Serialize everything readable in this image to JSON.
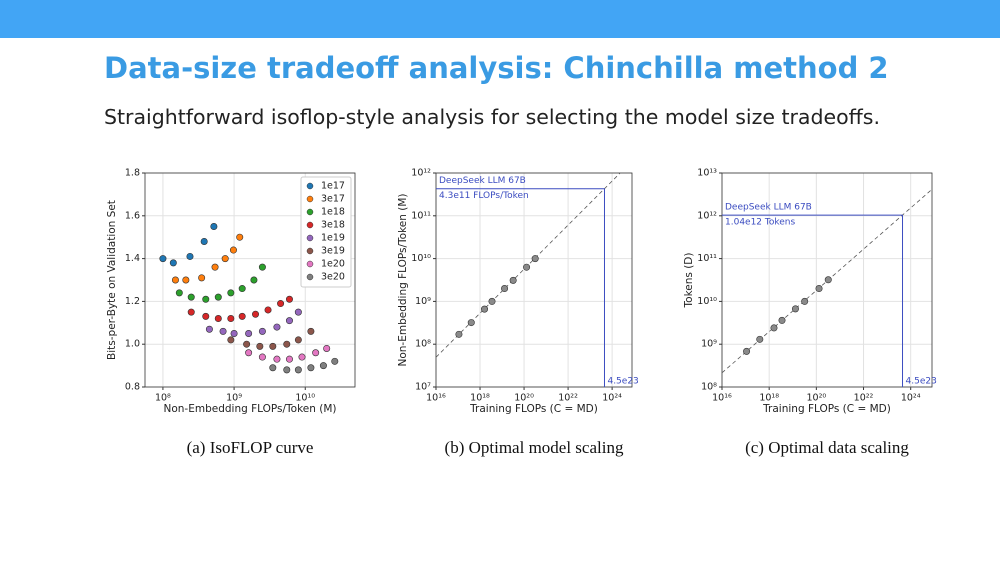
{
  "slide": {
    "title": "Data-size tradeoff analysis: Chinchilla method 2",
    "subtitle": "Straightforward isoflop-style analysis for selecting the model size tradeoffs."
  },
  "chart_data": [
    {
      "type": "scatter",
      "caption": "(a) IsoFLOP curve",
      "x_label": "Non-Embedding FLOPs/Token (M)",
      "y_label": "Bits-per-Byte on Validation Set",
      "xscale": "log",
      "xlim": [
        56000000,
        50000000000
      ],
      "ylim": [
        0.8,
        1.8
      ],
      "xticks": [
        {
          "value": 100000000,
          "label": "10⁸"
        },
        {
          "value": 1000000000,
          "label": "10⁹"
        },
        {
          "value": 10000000000,
          "label": "10¹⁰"
        }
      ],
      "yticks": [
        0.8,
        {
          "value": 1,
          "label": "1.0"
        },
        1.2,
        1.4,
        1.6,
        1.8
      ],
      "grid": true,
      "legend": "upper right",
      "series": [
        {
          "name": "1e17",
          "color": "#1f77b4",
          "x": [
            100000000,
            140000000,
            240000000,
            380000000,
            520000000
          ],
          "values": [
            1.4,
            1.38,
            1.41,
            1.48,
            1.55
          ]
        },
        {
          "name": "3e17",
          "color": "#ff7f0e",
          "x": [
            150000000,
            210000000,
            350000000,
            540000000,
            750000000,
            980000000,
            1200000000
          ],
          "values": [
            1.3,
            1.3,
            1.31,
            1.36,
            1.4,
            1.44,
            1.5
          ]
        },
        {
          "name": "1e18",
          "color": "#2ca02c",
          "x": [
            170000000,
            250000000,
            400000000,
            600000000,
            900000000,
            1300000000,
            1900000000,
            2500000000
          ],
          "values": [
            1.24,
            1.22,
            1.21,
            1.22,
            1.24,
            1.26,
            1.3,
            1.36
          ]
        },
        {
          "name": "3e18",
          "color": "#d62728",
          "x": [
            250000000,
            400000000,
            600000000,
            900000000,
            1300000000,
            2000000000,
            3000000000,
            4500000000,
            6000000000
          ],
          "values": [
            1.15,
            1.13,
            1.12,
            1.12,
            1.13,
            1.14,
            1.16,
            1.19,
            1.21
          ]
        },
        {
          "name": "1e19",
          "color": "#9467bd",
          "x": [
            450000000,
            700000000,
            1000000000,
            1600000000,
            2500000000,
            4000000000,
            6000000000,
            8000000000
          ],
          "values": [
            1.07,
            1.06,
            1.05,
            1.05,
            1.06,
            1.08,
            1.11,
            1.15
          ]
        },
        {
          "name": "3e19",
          "color": "#8c564b",
          "x": [
            900000000,
            1500000000,
            2300000000,
            3500000000,
            5500000000,
            8000000000,
            12000000000
          ],
          "values": [
            1.02,
            1.0,
            0.99,
            0.99,
            1.0,
            1.02,
            1.06
          ]
        },
        {
          "name": "1e20",
          "color": "#e377c2",
          "x": [
            1600000000,
            2500000000,
            4000000000,
            6000000000,
            9000000000,
            14000000000,
            20000000000
          ],
          "values": [
            0.96,
            0.94,
            0.93,
            0.93,
            0.94,
            0.96,
            0.98
          ]
        },
        {
          "name": "3e20",
          "color": "#7f7f7f",
          "x": [
            3500000000,
            5500000000,
            8000000000,
            12000000000,
            18000000000,
            26000000000
          ],
          "values": [
            0.89,
            0.88,
            0.88,
            0.89,
            0.9,
            0.92
          ]
        }
      ]
    },
    {
      "type": "scatter",
      "caption": "(b) Optimal model scaling",
      "x_label": "Training FLOPs (C = MD)",
      "y_label": "Non-Embedding FLOPs/Token (M)",
      "xscale": "log",
      "yscale": "log",
      "xlim": [
        1e+16,
        8e+24
      ],
      "ylim": [
        10000000,
        1000000000000
      ],
      "xticks": [
        {
          "value": 1e+16,
          "label": "10¹⁶"
        },
        {
          "value": 1e+18,
          "label": "10¹⁸"
        },
        {
          "value": 1e+20,
          "label": "10²⁰"
        },
        {
          "value": 1e+22,
          "label": "10²²"
        },
        {
          "value": 1e+24,
          "label": "10²⁴"
        }
      ],
      "yticks": [
        {
          "value": 10000000,
          "label": "10⁷"
        },
        {
          "value": 100000000,
          "label": "10⁸"
        },
        {
          "value": 1000000000,
          "label": "10⁹"
        },
        {
          "value": 10000000000,
          "label": "10¹⁰"
        },
        {
          "value": 100000000000,
          "label": "10¹¹"
        },
        {
          "value": 1000000000000,
          "label": "10¹²"
        }
      ],
      "grid": true,
      "fit_line": "dashed",
      "series": [
        {
          "color": "#8a8a8a",
          "x": [
            1.1e+17,
            4e+17,
            1.6e+18,
            3.5e+18,
            1.3e+19,
            3.2e+19,
            1.3e+20,
            3.2e+20
          ],
          "values": [
            170000000,
            320000000,
            660000000,
            1000000000,
            2000000000,
            3100000000,
            6300000000,
            10000000000
          ]
        }
      ],
      "annotation": {
        "x": 4.5e+23,
        "y": 430000000000,
        "label": "DeepSeek LLM 67B",
        "y_label": "4.3e11 FLOPs/Token",
        "x_label": "4.5e23",
        "color": "#3b4cc0"
      }
    },
    {
      "type": "scatter",
      "caption": "(c) Optimal data scaling",
      "x_label": "Training FLOPs (C = MD)",
      "y_label": "Tokens (D)",
      "xscale": "log",
      "yscale": "log",
      "xlim": [
        1e+16,
        8e+24
      ],
      "ylim": [
        100000000,
        10000000000000
      ],
      "xticks": [
        {
          "value": 1e+16,
          "label": "10¹⁶"
        },
        {
          "value": 1e+18,
          "label": "10¹⁸"
        },
        {
          "value": 1e+20,
          "label": "10²⁰"
        },
        {
          "value": 1e+22,
          "label": "10²²"
        },
        {
          "value": 1e+24,
          "label": "10²⁴"
        }
      ],
      "yticks": [
        {
          "value": 100000000,
          "label": "10⁸"
        },
        {
          "value": 1000000000,
          "label": "10⁹"
        },
        {
          "value": 10000000000,
          "label": "10¹⁰"
        },
        {
          "value": 100000000000,
          "label": "10¹¹"
        },
        {
          "value": 1000000000000,
          "label": "10¹²"
        },
        {
          "value": 10000000000000,
          "label": "10¹³"
        }
      ],
      "grid": true,
      "fit_line": "dashed",
      "series": [
        {
          "color": "#8a8a8a",
          "x": [
            1.1e+17,
            4e+17,
            1.6e+18,
            3.5e+18,
            1.3e+19,
            3.2e+19,
            1.3e+20,
            3.2e+20
          ],
          "values": [
            680000000,
            1300000000,
            2400000000,
            3600000000,
            6700000000,
            10000000000,
            20000000000,
            32000000000
          ]
        }
      ],
      "annotation": {
        "x": 4.5e+23,
        "y": 1040000000000,
        "label": "DeepSeek LLM 67B",
        "y_label": "1.04e12 Tokens",
        "x_label": "4.5e23",
        "color": "#3b4cc0"
      }
    }
  ]
}
